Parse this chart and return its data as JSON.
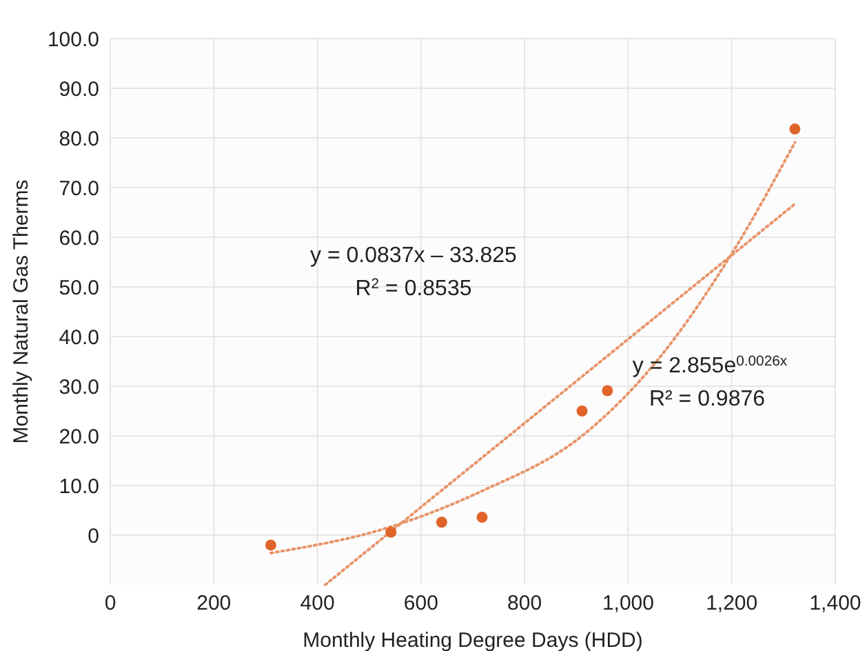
{
  "chart_data": {
    "type": "scatter",
    "xlabel": "Monthly Heating Degree Days (HDD)",
    "ylabel": "Monthly Natural Gas Therms",
    "xlim": [
      0,
      1400
    ],
    "ylim": [
      -10,
      100
    ],
    "xticks": [
      0,
      200,
      400,
      600,
      800,
      {
        "value": 1000,
        "label": "1,000"
      },
      {
        "value": 1200,
        "label": "1,200"
      },
      {
        "value": 1400,
        "label": "1,400"
      }
    ],
    "yticks": [
      0,
      {
        "value": 10,
        "label": "10.0"
      },
      {
        "value": 20,
        "label": "20.0"
      },
      {
        "value": 30,
        "label": "30.0"
      },
      {
        "value": 40,
        "label": "40.0"
      },
      {
        "value": 50,
        "label": "50.0"
      },
      {
        "value": 60,
        "label": "60.0"
      },
      {
        "value": 70,
        "label": "70.0"
      },
      {
        "value": 80,
        "label": "80.0"
      },
      {
        "value": 90,
        "label": "90.0"
      },
      {
        "value": 100,
        "label": "100.0"
      }
    ],
    "grid": true,
    "marker": "circle",
    "series": [
      {
        "color": "#e0642a",
        "x": [
          310,
          542,
          640,
          718,
          911,
          960,
          1322
        ],
        "values": [
          -2,
          0.6,
          2.6,
          3.6,
          25,
          29.1,
          81.8
        ]
      },
      {
        "type": "line",
        "color": "#e8946a",
        "line_style": "dotted",
        "marker": "none",
        "x": [
          415,
          1322
        ],
        "values": [
          -10,
          66.7
        ]
      },
      {
        "type": "line",
        "color": "#e8946a",
        "line_style": "dotted",
        "marker": "none",
        "x": [
          310,
          542,
          718,
          911,
          1050,
          1213,
          1322
        ],
        "values": [
          -3.6,
          1.7,
          8.9,
          20,
          34.4,
          58.9,
          79.1
        ]
      }
    ],
    "annotations": [
      "y = 0.0837x – 33.825",
      "R$^{2}$ = 0.8535",
      "y = 2.855e$^{0.0026x}$",
      "R² = 0.9876"
    ]
  }
}
